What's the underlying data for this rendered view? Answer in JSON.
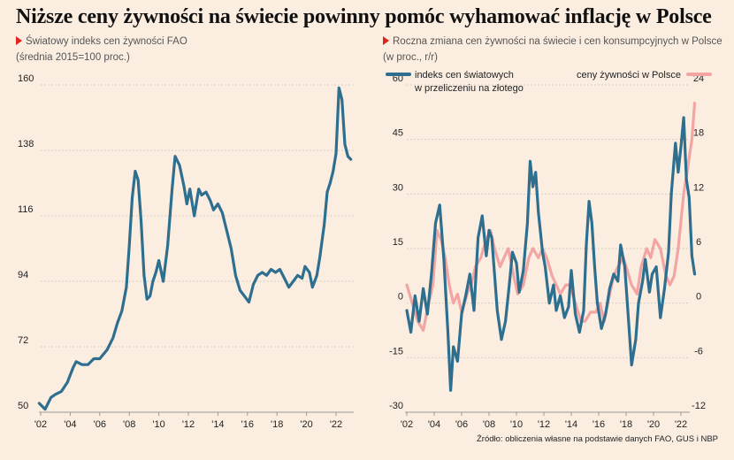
{
  "title": "Niższe ceny żywności na świecie powinny pomóc wyhamować inflację w Polsce",
  "source": "Źródło: obliczenia własne na podstawie danych FAO, GUS i NBP",
  "colors": {
    "teal": "#2e6e8e",
    "pink": "#f2a5a3",
    "accent": "#e2231a",
    "grid": "#c9c2bb",
    "background": "#fbeee1"
  },
  "chart_data": [
    {
      "type": "line",
      "subtitle_line1": "Światowy indeks cen żywności FAO",
      "subtitle_line2": "(średnia 2015=100 proc.)",
      "ylim": [
        50,
        160
      ],
      "yticks": [
        "160",
        "138",
        "116",
        "94",
        "72",
        "50"
      ],
      "yticks_values": [
        160,
        138,
        116,
        94,
        72,
        50
      ],
      "xticks": [
        "'02",
        "'04",
        "'06",
        "'08",
        "'10",
        "'12",
        "'14",
        "'16",
        "'18",
        "'20",
        "'22"
      ],
      "xticks_values": [
        2002,
        2004,
        2006,
        2008,
        2010,
        2012,
        2014,
        2016,
        2018,
        2020,
        2022
      ],
      "grid": "horizontal-dotted",
      "series": [
        {
          "color": "#2e6e8e",
          "points": [
            [
              2001.9,
              53
            ],
            [
              2002.3,
              51
            ],
            [
              2002.7,
              55
            ],
            [
              2003.0,
              56
            ],
            [
              2003.4,
              57
            ],
            [
              2003.8,
              60
            ],
            [
              2004.2,
              65
            ],
            [
              2004.4,
              67
            ],
            [
              2004.8,
              66
            ],
            [
              2005.2,
              66
            ],
            [
              2005.6,
              68
            ],
            [
              2006.0,
              68
            ],
            [
              2006.5,
              71
            ],
            [
              2006.9,
              75
            ],
            [
              2007.2,
              80
            ],
            [
              2007.5,
              84
            ],
            [
              2007.8,
              92
            ],
            [
              2008.0,
              106
            ],
            [
              2008.2,
              122
            ],
            [
              2008.4,
              131
            ],
            [
              2008.6,
              128
            ],
            [
              2008.8,
              114
            ],
            [
              2009.0,
              96
            ],
            [
              2009.2,
              88
            ],
            [
              2009.4,
              89
            ],
            [
              2009.6,
              94
            ],
            [
              2009.8,
              97
            ],
            [
              2010.0,
              101
            ],
            [
              2010.3,
              94
            ],
            [
              2010.6,
              106
            ],
            [
              2010.9,
              125
            ],
            [
              2011.1,
              136
            ],
            [
              2011.4,
              133
            ],
            [
              2011.7,
              126
            ],
            [
              2011.9,
              120
            ],
            [
              2012.1,
              125
            ],
            [
              2012.4,
              116
            ],
            [
              2012.7,
              125
            ],
            [
              2012.9,
              123
            ],
            [
              2013.2,
              124
            ],
            [
              2013.5,
              121
            ],
            [
              2013.7,
              118
            ],
            [
              2014.0,
              120
            ],
            [
              2014.3,
              117
            ],
            [
              2014.6,
              111
            ],
            [
              2014.9,
              105
            ],
            [
              2015.2,
              96
            ],
            [
              2015.5,
              91
            ],
            [
              2015.8,
              89
            ],
            [
              2016.1,
              87
            ],
            [
              2016.4,
              93
            ],
            [
              2016.7,
              96
            ],
            [
              2017.0,
              97
            ],
            [
              2017.3,
              96
            ],
            [
              2017.6,
              98
            ],
            [
              2017.9,
              97
            ],
            [
              2018.2,
              98
            ],
            [
              2018.5,
              95
            ],
            [
              2018.8,
              92
            ],
            [
              2019.1,
              94
            ],
            [
              2019.4,
              96
            ],
            [
              2019.7,
              95
            ],
            [
              2019.9,
              99
            ],
            [
              2020.2,
              97
            ],
            [
              2020.4,
              92
            ],
            [
              2020.7,
              96
            ],
            [
              2020.9,
              102
            ],
            [
              2021.2,
              113
            ],
            [
              2021.4,
              124
            ],
            [
              2021.6,
              127
            ],
            [
              2021.8,
              131
            ],
            [
              2022.0,
              137
            ],
            [
              2022.2,
              159
            ],
            [
              2022.4,
              155
            ],
            [
              2022.6,
              140
            ],
            [
              2022.8,
              136
            ],
            [
              2023.0,
              135
            ]
          ]
        }
      ]
    },
    {
      "type": "line",
      "subtitle_line1": "Roczna zmiana cen żywności na świecie i cen konsumpcyjnych w Polsce",
      "subtitle_line2": "(w proc., r/r)",
      "xticks": [
        "'02",
        "'04",
        "'06",
        "'08",
        "'10",
        "'12",
        "'14",
        "'16",
        "'18",
        "'20",
        "'22"
      ],
      "xticks_values": [
        2002,
        2004,
        2006,
        2008,
        2010,
        2012,
        2014,
        2016,
        2018,
        2020,
        2022
      ],
      "y_left": {
        "ylim": [
          -30,
          60
        ],
        "ticks": [
          "60",
          "45",
          "30",
          "15",
          "0",
          "-15",
          "-30"
        ],
        "ticks_values": [
          60,
          45,
          30,
          15,
          0,
          -15,
          -30
        ]
      },
      "y_right": {
        "ylim": [
          -12,
          24
        ],
        "ticks": [
          "24",
          "18",
          "12",
          "6",
          "0",
          "-6",
          "-12"
        ],
        "ticks_values": [
          24,
          18,
          12,
          6,
          0,
          -6,
          -12
        ]
      },
      "grid": "horizontal-dotted",
      "series": [
        {
          "name_line1": "indeks cen światowych",
          "name_line2": "w przeliczeniu na złotego",
          "color": "#2e6e8e",
          "axis": "left",
          "points": [
            [
              2002.0,
              -2
            ],
            [
              2002.3,
              -8
            ],
            [
              2002.6,
              2
            ],
            [
              2002.9,
              -5
            ],
            [
              2003.2,
              4
            ],
            [
              2003.5,
              -3
            ],
            [
              2003.8,
              8
            ],
            [
              2004.1,
              22
            ],
            [
              2004.4,
              27
            ],
            [
              2004.7,
              12
            ],
            [
              2005.0,
              -8
            ],
            [
              2005.2,
              -24
            ],
            [
              2005.4,
              -12
            ],
            [
              2005.7,
              -16
            ],
            [
              2006.0,
              -3
            ],
            [
              2006.3,
              2
            ],
            [
              2006.6,
              8
            ],
            [
              2006.9,
              -2
            ],
            [
              2007.2,
              18
            ],
            [
              2007.5,
              24
            ],
            [
              2007.8,
              13
            ],
            [
              2008.0,
              20
            ],
            [
              2008.2,
              18
            ],
            [
              2008.4,
              8
            ],
            [
              2008.6,
              -2
            ],
            [
              2008.9,
              -10
            ],
            [
              2009.2,
              -5
            ],
            [
              2009.5,
              6
            ],
            [
              2009.7,
              14
            ],
            [
              2010.0,
              11
            ],
            [
              2010.2,
              3
            ],
            [
              2010.5,
              9
            ],
            [
              2010.8,
              22
            ],
            [
              2011.0,
              39
            ],
            [
              2011.2,
              32
            ],
            [
              2011.4,
              36
            ],
            [
              2011.6,
              25
            ],
            [
              2011.9,
              14
            ],
            [
              2012.1,
              10
            ],
            [
              2012.4,
              0
            ],
            [
              2012.7,
              5
            ],
            [
              2012.9,
              -2
            ],
            [
              2013.2,
              2
            ],
            [
              2013.5,
              -4
            ],
            [
              2013.8,
              -1
            ],
            [
              2014.0,
              9
            ],
            [
              2014.3,
              -3
            ],
            [
              2014.6,
              -8
            ],
            [
              2014.9,
              -2
            ],
            [
              2015.1,
              16
            ],
            [
              2015.3,
              28
            ],
            [
              2015.5,
              22
            ],
            [
              2015.7,
              10
            ],
            [
              2015.9,
              0
            ],
            [
              2016.2,
              -7
            ],
            [
              2016.5,
              -3
            ],
            [
              2016.8,
              4
            ],
            [
              2017.1,
              8
            ],
            [
              2017.4,
              6
            ],
            [
              2017.6,
              16
            ],
            [
              2017.9,
              10
            ],
            [
              2018.2,
              -6
            ],
            [
              2018.4,
              -17
            ],
            [
              2018.7,
              -10
            ],
            [
              2018.9,
              0
            ],
            [
              2019.2,
              6
            ],
            [
              2019.4,
              12
            ],
            [
              2019.7,
              3
            ],
            [
              2019.9,
              8
            ],
            [
              2020.2,
              10
            ],
            [
              2020.5,
              -4
            ],
            [
              2020.8,
              4
            ],
            [
              2021.1,
              14
            ],
            [
              2021.3,
              30
            ],
            [
              2021.6,
              44
            ],
            [
              2021.8,
              36
            ],
            [
              2022.0,
              43
            ],
            [
              2022.2,
              51
            ],
            [
              2022.4,
              34
            ],
            [
              2022.6,
              29
            ],
            [
              2022.8,
              13
            ],
            [
              2023.0,
              8
            ]
          ]
        },
        {
          "name": "ceny żywności w Polsce",
          "color": "#f2a5a3",
          "axis": "right",
          "points": [
            [
              2002.0,
              2
            ],
            [
              2002.4,
              0
            ],
            [
              2002.8,
              -2
            ],
            [
              2003.2,
              -3
            ],
            [
              2003.6,
              0
            ],
            [
              2003.9,
              2
            ],
            [
              2004.2,
              8
            ],
            [
              2004.5,
              7
            ],
            [
              2004.8,
              5
            ],
            [
              2005.1,
              2
            ],
            [
              2005.4,
              0
            ],
            [
              2005.7,
              1
            ],
            [
              2006.0,
              -1
            ],
            [
              2006.4,
              1
            ],
            [
              2006.7,
              2
            ],
            [
              2007.0,
              4
            ],
            [
              2007.4,
              5
            ],
            [
              2007.8,
              7
            ],
            [
              2008.1,
              8
            ],
            [
              2008.4,
              6
            ],
            [
              2008.8,
              4
            ],
            [
              2009.1,
              5
            ],
            [
              2009.4,
              6
            ],
            [
              2009.8,
              3
            ],
            [
              2010.1,
              1
            ],
            [
              2010.5,
              2
            ],
            [
              2010.9,
              5
            ],
            [
              2011.2,
              6
            ],
            [
              2011.6,
              5
            ],
            [
              2011.9,
              6
            ],
            [
              2012.2,
              5
            ],
            [
              2012.6,
              3
            ],
            [
              2012.9,
              2
            ],
            [
              2013.2,
              1
            ],
            [
              2013.6,
              2
            ],
            [
              2013.9,
              2
            ],
            [
              2014.3,
              0
            ],
            [
              2014.7,
              -2
            ],
            [
              2015.0,
              -2
            ],
            [
              2015.4,
              -1
            ],
            [
              2015.8,
              -1
            ],
            [
              2016.1,
              0
            ],
            [
              2016.4,
              -2
            ],
            [
              2016.8,
              1
            ],
            [
              2017.1,
              3
            ],
            [
              2017.4,
              4
            ],
            [
              2017.8,
              5
            ],
            [
              2018.0,
              4
            ],
            [
              2018.4,
              2
            ],
            [
              2018.8,
              1
            ],
            [
              2019.1,
              4
            ],
            [
              2019.5,
              6
            ],
            [
              2019.8,
              5
            ],
            [
              2020.1,
              7
            ],
            [
              2020.5,
              6
            ],
            [
              2020.9,
              3
            ],
            [
              2021.2,
              2
            ],
            [
              2021.5,
              3
            ],
            [
              2021.8,
              6
            ],
            [
              2022.0,
              9
            ],
            [
              2022.2,
              12
            ],
            [
              2022.5,
              15
            ],
            [
              2022.8,
              18
            ],
            [
              2023.0,
              22
            ]
          ]
        }
      ]
    }
  ]
}
